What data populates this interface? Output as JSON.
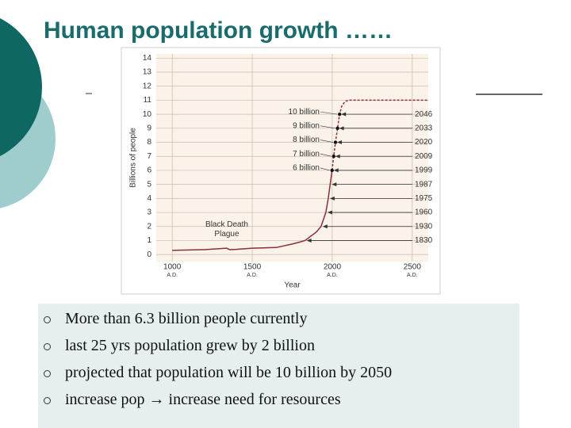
{
  "title": "Human population growth ……",
  "bullets": [
    "More than 6.3 billion people currently",
    "last 25 yrs population grew by 2 billion",
    "projected that population will be 10 billion by 2050",
    "increase pop → increase need for resources"
  ],
  "chart_data": {
    "type": "line",
    "x_label": "Year",
    "y_label": "Billions of people",
    "xlim": [
      900,
      2600
    ],
    "ylim": [
      -0.5,
      14.3
    ],
    "xticks": [
      1000,
      1500,
      2000,
      2500
    ],
    "xtick_era": [
      "A.D.",
      "A.D.",
      "A.D.",
      "A.D."
    ],
    "yticks": [
      0,
      1,
      2,
      3,
      4,
      5,
      6,
      7,
      8,
      9,
      10,
      11,
      12,
      13,
      14
    ],
    "grid": true,
    "color": "#8b2f3a",
    "x": [
      1000,
      1200,
      1340,
      1360,
      1400,
      1500,
      1650,
      1750,
      1800,
      1830,
      1900,
      1930,
      1960,
      1975,
      1987,
      1999
    ],
    "values": [
      0.3,
      0.35,
      0.45,
      0.35,
      0.37,
      0.45,
      0.5,
      0.75,
      0.9,
      1,
      1.6,
      2,
      3,
      4,
      5,
      6
    ],
    "projection_x": [
      1999,
      2009,
      2020,
      2033,
      2046,
      2060,
      2080,
      2100,
      2600
    ],
    "projection_values": [
      6,
      7,
      8,
      9,
      10,
      10.6,
      10.9,
      11,
      11
    ],
    "milestones": [
      {
        "year": 1830,
        "value": 1
      },
      {
        "year": 1930,
        "value": 2
      },
      {
        "year": 1960,
        "value": 3
      },
      {
        "year": 1975,
        "value": 4
      },
      {
        "year": 1987,
        "value": 5
      },
      {
        "year": 1999,
        "value": 6
      },
      {
        "year": 2009,
        "value": 7
      },
      {
        "year": 2020,
        "value": 8
      },
      {
        "year": 2033,
        "value": 9
      },
      {
        "year": 2046,
        "value": 10
      }
    ],
    "billion_labels": [
      {
        "label": "6 billion",
        "value": 6
      },
      {
        "label": "7 billion",
        "value": 7
      },
      {
        "label": "8 billion",
        "value": 8
      },
      {
        "label": "9 billion",
        "value": 9
      },
      {
        "label": "10 billion",
        "value": 10
      }
    ],
    "annotation": "Black Death\nPlague"
  }
}
